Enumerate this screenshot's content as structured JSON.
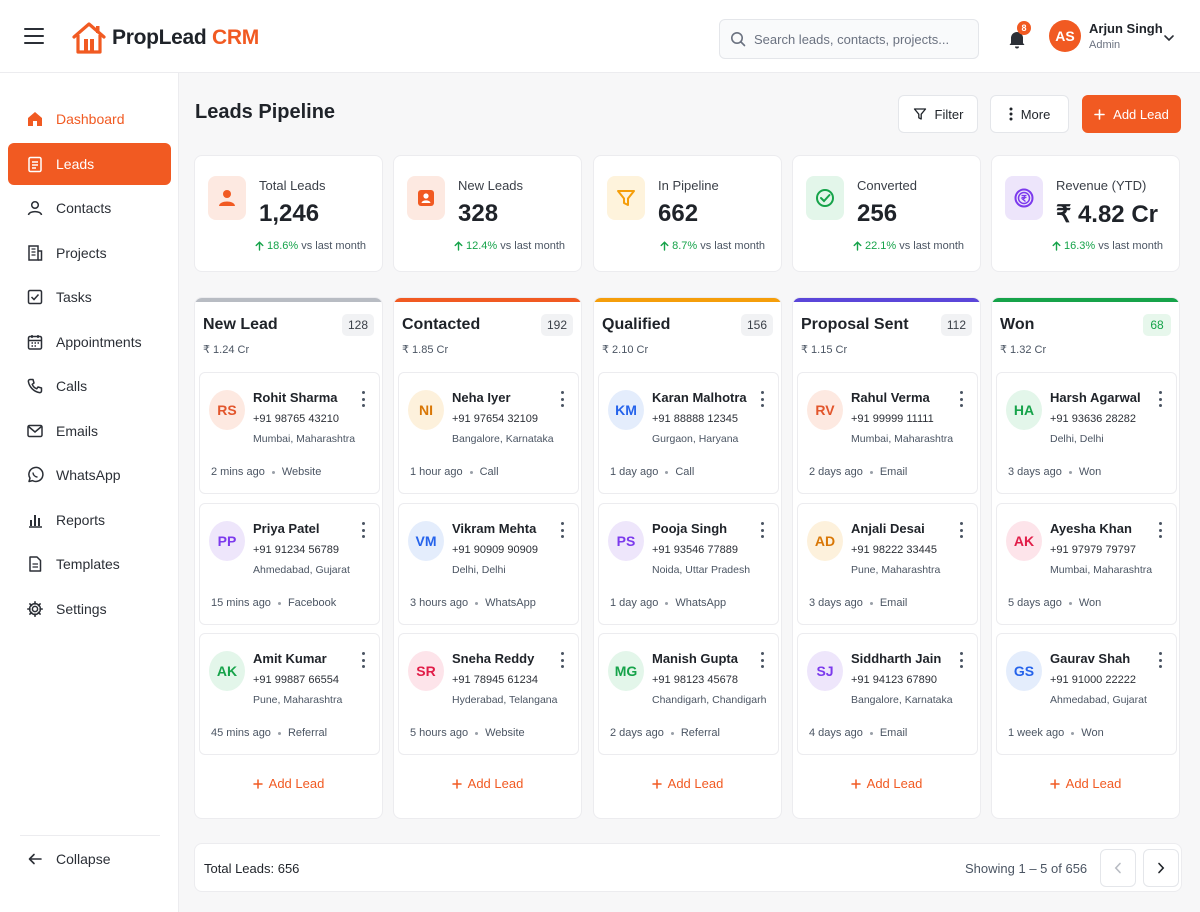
{
  "header": {
    "logo_main": "PropLead",
    "logo_accent": "CRM",
    "search_placeholder": "Search leads, contacts, projects...",
    "notification_count": "8",
    "user": {
      "initials": "AS",
      "name": "Arjun Singh",
      "role": "Admin"
    }
  },
  "sidebar": {
    "items": [
      {
        "label": "Dashboard",
        "icon": "home-icon"
      },
      {
        "label": "Leads",
        "icon": "clipboard-icon"
      },
      {
        "label": "Contacts",
        "icon": "user-icon"
      },
      {
        "label": "Projects",
        "icon": "building-icon"
      },
      {
        "label": "Tasks",
        "icon": "checkbox-icon"
      },
      {
        "label": "Appointments",
        "icon": "calendar-icon"
      },
      {
        "label": "Calls",
        "icon": "phone-icon"
      },
      {
        "label": "Emails",
        "icon": "mail-icon"
      },
      {
        "label": "WhatsApp",
        "icon": "whatsapp-icon"
      },
      {
        "label": "Reports",
        "icon": "bar-chart-icon"
      },
      {
        "label": "Templates",
        "icon": "document-icon"
      },
      {
        "label": "Settings",
        "icon": "gear-icon"
      }
    ],
    "collapse_label": "Collapse",
    "active": "Leads"
  },
  "page": {
    "title": "Leads Pipeline",
    "filter_label": "Filter",
    "more_label": "More",
    "add_lead_label": "Add Lead"
  },
  "stats": [
    {
      "label": "Total Leads",
      "value": "1,246",
      "change": "18.6%",
      "suffix": "vs last month",
      "icon": "user-icon",
      "color": "#f15a22",
      "bg": "#fde9e1"
    },
    {
      "label": "New Leads",
      "value": "328",
      "change": "12.4%",
      "suffix": "vs last month",
      "icon": "id-card-icon",
      "color": "#f15a22",
      "bg": "#fde9e1"
    },
    {
      "label": "In Pipeline",
      "value": "662",
      "change": "8.7%",
      "suffix": "vs last month",
      "icon": "funnel-icon",
      "color": "#f59e0b",
      "bg": "#fef3dc"
    },
    {
      "label": "Converted",
      "value": "256",
      "change": "22.1%",
      "suffix": "vs last month",
      "icon": "check-circle-icon",
      "color": "#16a34a",
      "bg": "#e3f6ea"
    },
    {
      "label": "Revenue (YTD)",
      "value": "₹ 4.82 Cr",
      "change": "16.3%",
      "suffix": "vs last month",
      "icon": "rupee-coin-icon",
      "color": "#7c3aed",
      "bg": "#ede5fb"
    }
  ],
  "columns": [
    {
      "title": "New Lead",
      "count": "128",
      "amount": "₹ 1.24 Cr",
      "color": "#b8bcc3",
      "leads": [
        {
          "initials": "RS",
          "name": "Rohit Sharma",
          "phone": "+91 98765 43210",
          "location": "Mumbai, Maharashtra",
          "time": "2 mins ago",
          "source": "Website",
          "fg": "#e2552b",
          "bg": "#fde9e1"
        },
        {
          "initials": "PP",
          "name": "Priya Patel",
          "phone": "+91 91234 56789",
          "location": "Ahmedabad, Gujarat",
          "time": "15 mins ago",
          "source": "Facebook",
          "fg": "#7c3aed",
          "bg": "#eee6fb"
        },
        {
          "initials": "AK",
          "name": "Amit Kumar",
          "phone": "+91 99887 66554",
          "location": "Pune, Maharashtra",
          "time": "45 mins ago",
          "source": "Referral",
          "fg": "#16a34a",
          "bg": "#e3f6ea"
        }
      ]
    },
    {
      "title": "Contacted",
      "count": "192",
      "amount": "₹ 1.85 Cr",
      "color": "#f15a22",
      "leads": [
        {
          "initials": "NI",
          "name": "Neha Iyer",
          "phone": "+91 97654 32109",
          "location": "Bangalore, Karnataka",
          "time": "1 hour ago",
          "source": "Call",
          "fg": "#d97706",
          "bg": "#fdf1dc"
        },
        {
          "initials": "VM",
          "name": "Vikram Mehta",
          "phone": "+91 90909 90909",
          "location": "Delhi, Delhi",
          "time": "3 hours ago",
          "source": "WhatsApp",
          "fg": "#2563eb",
          "bg": "#e4edfc"
        },
        {
          "initials": "SR",
          "name": "Sneha Reddy",
          "phone": "+91 78945 61234",
          "location": "Hyderabad, Telangana",
          "time": "5 hours ago",
          "source": "Website",
          "fg": "#e11d48",
          "bg": "#fde4ea"
        }
      ]
    },
    {
      "title": "Qualified",
      "count": "156",
      "amount": "₹ 2.10 Cr",
      "color": "#f59e0b",
      "leads": [
        {
          "initials": "KM",
          "name": "Karan Malhotra",
          "phone": "+91 88888 12345",
          "location": "Gurgaon, Haryana",
          "time": "1 day ago",
          "source": "Call",
          "fg": "#2563eb",
          "bg": "#e4edfc"
        },
        {
          "initials": "PS",
          "name": "Pooja Singh",
          "phone": "+91 93546 77889",
          "location": "Noida, Uttar Pradesh",
          "time": "1 day ago",
          "source": "WhatsApp",
          "fg": "#7c3aed",
          "bg": "#eee6fb"
        },
        {
          "initials": "MG",
          "name": "Manish Gupta",
          "phone": "+91 98123 45678",
          "location": "Chandigarh, Chandigarh",
          "time": "2 days ago",
          "source": "Referral",
          "fg": "#16a34a",
          "bg": "#e3f6ea"
        }
      ]
    },
    {
      "title": "Proposal Sent",
      "count": "112",
      "amount": "₹ 1.15 Cr",
      "color": "#5b46d9",
      "leads": [
        {
          "initials": "RV",
          "name": "Rahul Verma",
          "phone": "+91 99999 11111",
          "location": "Mumbai, Maharashtra",
          "time": "2 days ago",
          "source": "Email",
          "fg": "#e2552b",
          "bg": "#fde9e1"
        },
        {
          "initials": "AD",
          "name": "Anjali Desai",
          "phone": "+91 98222 33445",
          "location": "Pune, Maharashtra",
          "time": "3 days ago",
          "source": "Email",
          "fg": "#d97706",
          "bg": "#fdf1dc"
        },
        {
          "initials": "SJ",
          "name": "Siddharth Jain",
          "phone": "+91 94123 67890",
          "location": "Bangalore, Karnataka",
          "time": "4 days ago",
          "source": "Email",
          "fg": "#7c3aed",
          "bg": "#eee6fb"
        }
      ]
    },
    {
      "title": "Won",
      "count": "68",
      "amount": "₹ 1.32 Cr",
      "color": "#16a34a",
      "count_green": true,
      "leads": [
        {
          "initials": "HA",
          "name": "Harsh Agarwal",
          "phone": "+91 93636 28282",
          "location": "Delhi, Delhi",
          "time": "3 days ago",
          "source": "Won",
          "fg": "#16a34a",
          "bg": "#e3f6ea"
        },
        {
          "initials": "AK",
          "name": "Ayesha Khan",
          "phone": "+91 97979 79797",
          "location": "Mumbai, Maharashtra",
          "time": "5 days ago",
          "source": "Won",
          "fg": "#e11d48",
          "bg": "#fde4ea"
        },
        {
          "initials": "GS",
          "name": "Gaurav Shah",
          "phone": "+91 91000 22222",
          "location": "Ahmedabad, Gujarat",
          "time": "1 week ago",
          "source": "Won",
          "fg": "#2563eb",
          "bg": "#e4edfc"
        }
      ]
    }
  ],
  "column_add_label": "Add Lead",
  "footer": {
    "total": "Total Leads: 656",
    "showing": "Showing 1 – 5 of 656"
  }
}
